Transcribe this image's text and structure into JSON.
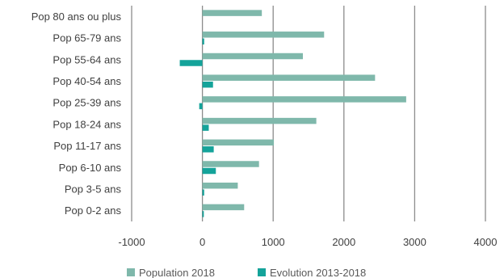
{
  "chart_data": {
    "type": "bar",
    "orientation": "horizontal",
    "categories": [
      "Pop 80 ans ou plus",
      "Pop 65-79 ans",
      "Pop 55-64 ans",
      "Pop 40-54 ans",
      "Pop 25-39 ans",
      "Pop 18-24 ans",
      "Pop 11-17 ans",
      "Pop 6-10 ans",
      "Pop 3-5 ans",
      "Pop 0-2 ans"
    ],
    "series": [
      {
        "name": "Population 2018",
        "color": "#7fb8ab",
        "values": [
          840,
          1720,
          1420,
          2440,
          2880,
          1610,
          1010,
          800,
          500,
          590
        ]
      },
      {
        "name": "Evolution 2013-2018",
        "color": "#14a39a",
        "values": [
          0,
          25,
          -320,
          150,
          -45,
          90,
          160,
          190,
          25,
          20
        ]
      }
    ],
    "xlim": [
      -1000,
      4000
    ],
    "xticks": [
      "-1000",
      "0",
      "1000",
      "2000",
      "3000",
      "4000"
    ],
    "grid": "vertical",
    "legend_position": "bottom"
  }
}
